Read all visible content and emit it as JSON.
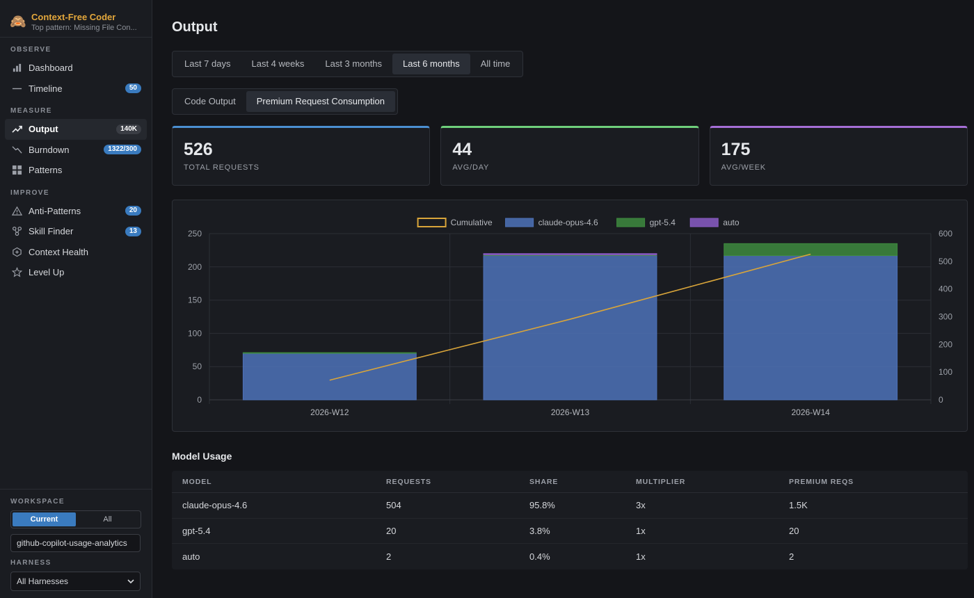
{
  "brand": {
    "name": "Context-Free Coder",
    "subtitle": "Top pattern: Missing File Con...",
    "logo_icon": "monkey-face-icon"
  },
  "sidebar": {
    "sections": [
      {
        "label": "OBSERVE",
        "items": [
          {
            "label": "Dashboard",
            "icon": "bar-chart-icon",
            "badge": ""
          },
          {
            "label": "Timeline",
            "icon": "line-dash-icon",
            "badge": "50"
          }
        ]
      },
      {
        "label": "MEASURE",
        "items": [
          {
            "label": "Output",
            "icon": "trend-up-icon",
            "badge": "140K",
            "active": true
          },
          {
            "label": "Burndown",
            "icon": "trend-down-icon",
            "badge": "1322/300"
          },
          {
            "label": "Patterns",
            "icon": "grid-icon",
            "badge": ""
          }
        ]
      },
      {
        "label": "IMPROVE",
        "items": [
          {
            "label": "Anti-Patterns",
            "icon": "warning-icon",
            "badge": "20"
          },
          {
            "label": "Skill Finder",
            "icon": "network-icon",
            "badge": "13"
          },
          {
            "label": "Context Health",
            "icon": "health-hexagon-icon",
            "badge": ""
          },
          {
            "label": "Level Up",
            "icon": "star-icon",
            "badge": ""
          }
        ]
      }
    ]
  },
  "workspace": {
    "label": "WORKSPACE",
    "toggle": {
      "current": "Current",
      "all": "All",
      "selected": "Current"
    },
    "input_value": "github-copilot-usage-analytics",
    "harness_label": "HARNESS",
    "harness_value": "All Harnesses"
  },
  "main": {
    "title": "Output",
    "range_tabs": [
      "Last 7 days",
      "Last 4 weeks",
      "Last 3 months",
      "Last 6 months",
      "All time"
    ],
    "range_selected": "Last 6 months",
    "mode_tabs": [
      "Code Output",
      "Premium Request Consumption"
    ],
    "mode_selected": "Premium Request Consumption",
    "kpis": [
      {
        "value": "526",
        "label": "TOTAL REQUESTS",
        "accent": "#4b8fd1"
      },
      {
        "value": "44",
        "label": "AVG/DAY",
        "accent": "#6fcf7b"
      },
      {
        "value": "175",
        "label": "AVG/WEEK",
        "accent": "#a56ed6"
      }
    ]
  },
  "chart_data": {
    "type": "bar",
    "categories": [
      "2026-W12",
      "2026-W13",
      "2026-W14"
    ],
    "series": [
      {
        "name": "claude-opus-4.6",
        "type": "bar",
        "axis": "left",
        "color": "#4e72b8",
        "values": [
          70,
          217,
          217
        ]
      },
      {
        "name": "gpt-5.4",
        "type": "bar",
        "axis": "left",
        "color": "#3e8a3e",
        "values": [
          1,
          1,
          18
        ]
      },
      {
        "name": "auto",
        "type": "bar",
        "axis": "left",
        "color": "#8a5cc4",
        "values": [
          0,
          2,
          0
        ]
      },
      {
        "name": "Cumulative",
        "type": "line",
        "axis": "right",
        "color": "#d9a53a",
        "values": [
          71,
          291,
          526
        ]
      }
    ],
    "legend": [
      "Cumulative",
      "claude-opus-4.6",
      "gpt-5.4",
      "auto"
    ],
    "legend_position": "top-center",
    "ylim_left": [
      0,
      250
    ],
    "yticks_left": [
      0,
      50,
      100,
      150,
      200,
      250
    ],
    "ylim_right": [
      0,
      600
    ],
    "yticks_right": [
      0,
      100,
      200,
      300,
      400,
      500,
      600
    ],
    "stacked": true,
    "grid": true
  },
  "model_usage": {
    "title": "Model Usage",
    "columns": [
      "MODEL",
      "REQUESTS",
      "SHARE",
      "MULTIPLIER",
      "PREMIUM REQS"
    ],
    "rows": [
      [
        "claude-opus-4.6",
        "504",
        "95.8%",
        "3x",
        "1.5K"
      ],
      [
        "gpt-5.4",
        "20",
        "3.8%",
        "1x",
        "20"
      ],
      [
        "auto",
        "2",
        "0.4%",
        "1x",
        "2"
      ]
    ]
  }
}
